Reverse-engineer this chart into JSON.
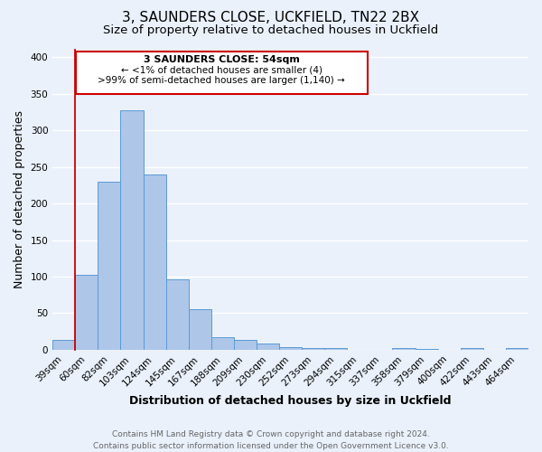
{
  "title": "3, SAUNDERS CLOSE, UCKFIELD, TN22 2BX",
  "subtitle": "Size of property relative to detached houses in Uckfield",
  "xlabel": "Distribution of detached houses by size in Uckfield",
  "ylabel": "Number of detached properties",
  "bar_labels": [
    "39sqm",
    "60sqm",
    "82sqm",
    "103sqm",
    "124sqm",
    "145sqm",
    "167sqm",
    "188sqm",
    "209sqm",
    "230sqm",
    "252sqm",
    "273sqm",
    "294sqm",
    "315sqm",
    "337sqm",
    "358sqm",
    "379sqm",
    "400sqm",
    "422sqm",
    "443sqm",
    "464sqm"
  ],
  "bar_heights": [
    13,
    102,
    230,
    327,
    239,
    96,
    55,
    17,
    14,
    9,
    4,
    3,
    2,
    0,
    0,
    2,
    1,
    0,
    3,
    0,
    3
  ],
  "bar_color": "#aec6e8",
  "bar_edge_color": "#5b9bd5",
  "ylim": [
    0,
    410
  ],
  "yticks": [
    0,
    50,
    100,
    150,
    200,
    250,
    300,
    350,
    400
  ],
  "red_line_x": 0.5,
  "annotation_box": {
    "text_line1": "3 SAUNDERS CLOSE: 54sqm",
    "text_line2": "← <1% of detached houses are smaller (4)",
    "text_line3": ">99% of semi-detached houses are larger (1,140) →",
    "box_color": "#ffffff",
    "border_color": "#cc0000"
  },
  "footer_lines": [
    "Contains HM Land Registry data © Crown copyright and database right 2024.",
    "Contains public sector information licensed under the Open Government Licence v3.0."
  ],
  "background_color": "#eaf1fb",
  "grid_color": "#ffffff",
  "title_fontsize": 11,
  "subtitle_fontsize": 9.5,
  "axis_label_fontsize": 9,
  "tick_fontsize": 7.5,
  "footer_fontsize": 6.5
}
